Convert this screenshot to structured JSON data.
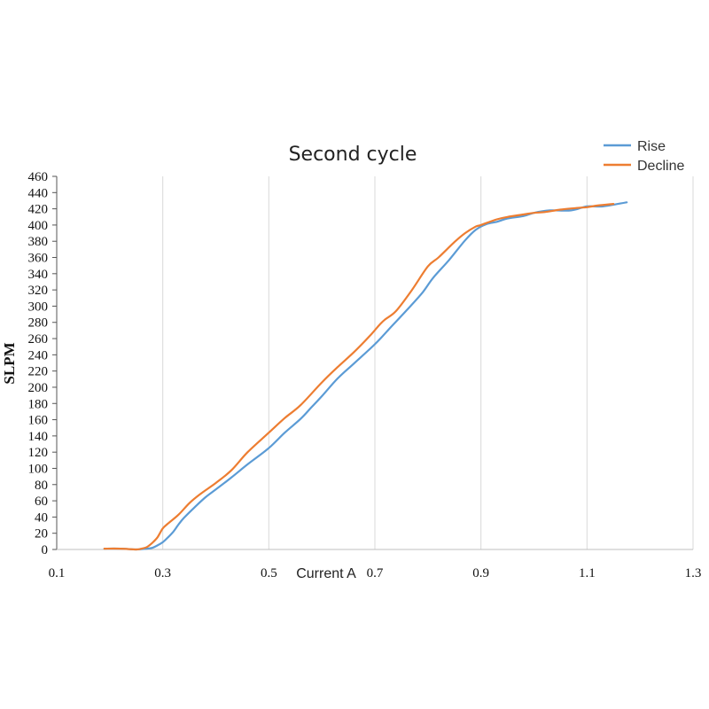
{
  "chart_data": {
    "type": "line",
    "title": "Second cycle",
    "xlabel": "Current A",
    "ylabel": "SLPM",
    "xlim": [
      0.1,
      1.3
    ],
    "ylim": [
      0,
      460
    ],
    "xticks": [
      "0.1",
      "0.3",
      "0.5",
      "0.7",
      "0.9",
      "1.1",
      "1.3"
    ],
    "yticks": [
      "0",
      "20",
      "40",
      "60",
      "80",
      "100",
      "120",
      "140",
      "160",
      "180",
      "200",
      "220",
      "240",
      "260",
      "280",
      "300",
      "320",
      "340",
      "360",
      "380",
      "400",
      "420",
      "440",
      "460"
    ],
    "grid": "vertical",
    "legend_position": "top-right",
    "series": [
      {
        "name": "Rise",
        "color": "#5b9bd5",
        "x": [
          0.19,
          0.22,
          0.25,
          0.27,
          0.28,
          0.29,
          0.3,
          0.31,
          0.32,
          0.33,
          0.34,
          0.36,
          0.38,
          0.4,
          0.43,
          0.46,
          0.5,
          0.53,
          0.56,
          0.58,
          0.6,
          0.63,
          0.66,
          0.7,
          0.73,
          0.76,
          0.79,
          0.81,
          0.84,
          0.87,
          0.89,
          0.91,
          0.93,
          0.95,
          0.98,
          1.0,
          1.03,
          1.07,
          1.1,
          1.13,
          1.175
        ],
        "y": [
          1,
          1,
          0,
          1,
          2,
          5,
          9,
          15,
          22,
          31,
          39,
          52,
          64,
          74,
          89,
          105,
          125,
          144,
          161,
          175,
          189,
          211,
          229,
          253,
          274,
          295,
          317,
          335,
          357,
          381,
          394,
          401,
          404,
          408,
          411,
          415,
          418,
          418,
          423,
          423,
          428
        ]
      },
      {
        "name": "Decline",
        "color": "#ed7d31",
        "x": [
          0.19,
          0.22,
          0.25,
          0.26,
          0.27,
          0.28,
          0.29,
          0.3,
          0.31,
          0.33,
          0.35,
          0.37,
          0.4,
          0.43,
          0.46,
          0.5,
          0.53,
          0.56,
          0.6,
          0.63,
          0.66,
          0.69,
          0.71,
          0.72,
          0.74,
          0.77,
          0.8,
          0.82,
          0.85,
          0.87,
          0.89,
          0.9,
          0.93,
          0.95,
          0.98,
          1.0,
          1.02,
          1.05,
          1.08,
          1.1,
          1.12,
          1.15
        ],
        "y": [
          1,
          1,
          0,
          1,
          3,
          8,
          15,
          26,
          32,
          43,
          57,
          68,
          82,
          98,
          120,
          144,
          162,
          178,
          206,
          225,
          243,
          263,
          278,
          284,
          294,
          320,
          349,
          360,
          379,
          390,
          398,
          400,
          407,
          410,
          413,
          415,
          416,
          419,
          421,
          422,
          424,
          426
        ]
      }
    ]
  }
}
